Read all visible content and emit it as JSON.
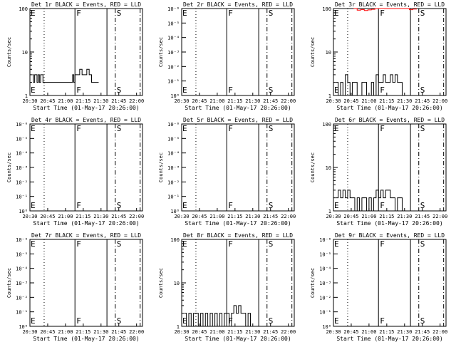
{
  "chart_data": [
    {
      "type": "line",
      "title": "Det 1r BLACK = Events, RED = LLD",
      "xlabel": "Start Time (01-May-17 20:26:00)",
      "ylabel": "Counts/sec",
      "scale": "log",
      "y_tick_labels": [
        "1",
        "10",
        "100"
      ],
      "y_tick_values": [
        1,
        10,
        100
      ],
      "x_tick_labels": [
        "20:30",
        "20:45",
        "21:00",
        "21:15",
        "21:30",
        "21:45",
        "22:00"
      ],
      "xlim": [
        "20:30",
        "22:05"
      ],
      "ylim": [
        1,
        100
      ],
      "markers": [
        {
          "time": "20:42",
          "style": "dotted",
          "label": ""
        },
        {
          "time": "21:08",
          "style": "solid",
          "label": "F"
        },
        {
          "time": "21:35",
          "style": "solid",
          "label": ""
        },
        {
          "time": "21:42",
          "style": "dashdot",
          "label": "S"
        },
        {
          "time": "22:03",
          "style": "dashdot",
          "label": ""
        }
      ],
      "edge_labels": [
        "E",
        "E"
      ],
      "series": [
        {
          "color": "#000000",
          "x": [
            "20:32",
            "20:33",
            "20:34",
            "20:35",
            "20:36",
            "20:37",
            "20:38",
            "20:39",
            "20:40",
            "20:41",
            "20:42",
            "20:43",
            "20:45",
            "20:48",
            "20:52",
            "20:56",
            "21:00",
            "21:04",
            "21:06",
            "21:07",
            "21:08",
            "21:10",
            "21:12",
            "21:14",
            "21:16",
            "21:18",
            "21:20",
            "21:22",
            "21:24",
            "21:26",
            "21:28"
          ],
          "y": [
            3,
            2,
            3,
            3,
            2,
            3,
            2,
            3,
            3,
            2,
            2,
            2,
            2,
            2,
            2,
            2,
            2,
            2,
            3,
            2,
            3,
            3,
            4,
            3,
            3,
            4,
            3,
            2,
            2,
            2,
            2
          ]
        }
      ]
    },
    {
      "type": "line",
      "title": "Det 2r BLACK = Events, RED = LLD",
      "xlabel": "Start Time (01-May-17 20:26:00)",
      "ylabel": "Counts/sec",
      "scale": "log",
      "y_tick_labels": [
        "10⁰",
        "10⁻¹",
        "10⁻²",
        "10⁻³",
        "10⁻⁴",
        "10⁻⁵",
        "10⁻⁶"
      ],
      "x_tick_labels": [
        "20:30",
        "20:45",
        "21:00",
        "21:15",
        "21:30",
        "21:45",
        "22:00"
      ],
      "markers": [
        {
          "time": "20:42",
          "style": "dotted",
          "label": ""
        },
        {
          "time": "21:08",
          "style": "solid",
          "label": "F"
        },
        {
          "time": "21:35",
          "style": "solid",
          "label": ""
        },
        {
          "time": "21:42",
          "style": "dashdot",
          "label": "S"
        },
        {
          "time": "22:03",
          "style": "dashdot",
          "label": ""
        }
      ],
      "edge_labels": [
        "E",
        "E"
      ],
      "series": []
    },
    {
      "type": "line",
      "title": "Det 3r BLACK = Events, RED = LLD",
      "xlabel": "Start Time (01-May-17 20:26:00)",
      "ylabel": "Counts/sec",
      "scale": "log",
      "y_tick_labels": [
        "1",
        "10",
        "100"
      ],
      "y_tick_values": [
        1,
        10,
        100
      ],
      "x_tick_labels": [
        "20:30",
        "20:45",
        "21:00",
        "21:15",
        "21:30",
        "21:45",
        "22:00"
      ],
      "markers": [
        {
          "time": "20:42",
          "style": "dotted",
          "label": ""
        },
        {
          "time": "21:08",
          "style": "solid",
          "label": "F"
        },
        {
          "time": "21:35",
          "style": "solid",
          "label": ""
        },
        {
          "time": "21:42",
          "style": "dashdot",
          "label": "S"
        },
        {
          "time": "22:03",
          "style": "dashdot",
          "label": ""
        }
      ],
      "edge_labels": [
        "E",
        "E"
      ],
      "series": [
        {
          "color": "#000000",
          "x": [
            "20:32",
            "20:34",
            "20:36",
            "20:38",
            "20:40",
            "20:42",
            "20:44",
            "20:46",
            "20:50",
            "20:54",
            "20:58",
            "21:02",
            "21:04",
            "21:06",
            "21:08",
            "21:10",
            "21:12",
            "21:14",
            "21:16",
            "21:18",
            "21:20",
            "21:22",
            "21:24",
            "21:26",
            "21:28"
          ],
          "y": [
            2,
            1,
            2,
            1,
            3,
            2,
            1,
            2,
            1,
            2,
            1,
            2,
            1,
            3,
            2,
            2,
            3,
            2,
            2,
            3,
            2,
            3,
            2,
            2,
            1
          ]
        },
        {
          "color": "#ff0000",
          "x": [
            "20:47",
            "20:50",
            "20:53",
            "20:56",
            "20:59",
            "21:02",
            "21:05",
            "21:31",
            "21:34",
            "21:37",
            "21:40"
          ],
          "y": [
            100,
            92,
            95,
            90,
            93,
            96,
            100,
            100,
            94,
            97,
            100
          ]
        }
      ]
    },
    {
      "type": "line",
      "title": "Det 4r BLACK = Events, RED = LLD",
      "xlabel": "Start Time (01-May-17 20:26:00)",
      "ylabel": "Counts/sec",
      "scale": "log",
      "y_tick_labels": [
        "10⁰",
        "10⁻¹",
        "10⁻²",
        "10⁻³",
        "10⁻⁴",
        "10⁻⁵",
        "10⁻⁶"
      ],
      "x_tick_labels": [
        "20:30",
        "20:45",
        "21:00",
        "21:15",
        "21:30",
        "21:45",
        "22:00"
      ],
      "markers": [
        {
          "time": "20:42",
          "style": "dotted",
          "label": ""
        },
        {
          "time": "21:08",
          "style": "solid",
          "label": "F"
        },
        {
          "time": "21:35",
          "style": "solid",
          "label": ""
        },
        {
          "time": "21:42",
          "style": "dashdot",
          "label": "S"
        },
        {
          "time": "22:03",
          "style": "dashdot",
          "label": ""
        }
      ],
      "edge_labels": [
        "E",
        "E"
      ],
      "series": []
    },
    {
      "type": "line",
      "title": "Det 5r BLACK = Events, RED = LLD",
      "xlabel": "Start Time (01-May-17 20:26:00)",
      "ylabel": "Counts/sec",
      "scale": "log",
      "y_tick_labels": [
        "10⁰",
        "10⁻¹",
        "10⁻²",
        "10⁻³",
        "10⁻⁴",
        "10⁻⁵",
        "10⁻⁶"
      ],
      "x_tick_labels": [
        "20:30",
        "20:45",
        "21:00",
        "21:15",
        "21:30",
        "21:45",
        "22:00"
      ],
      "markers": [
        {
          "time": "20:42",
          "style": "dotted",
          "label": ""
        },
        {
          "time": "21:08",
          "style": "solid",
          "label": "F"
        },
        {
          "time": "21:35",
          "style": "solid",
          "label": ""
        },
        {
          "time": "21:42",
          "style": "dashdot",
          "label": "S"
        },
        {
          "time": "22:03",
          "style": "dashdot",
          "label": ""
        }
      ],
      "edge_labels": [
        "E",
        "E"
      ],
      "series": []
    },
    {
      "type": "line",
      "title": "Det 6r BLACK = Events, RED = LLD",
      "xlabel": "Start Time (01-May-17 20:26:00)",
      "ylabel": "Counts/sec",
      "scale": "log",
      "y_tick_labels": [
        "1",
        "10",
        "100"
      ],
      "y_tick_values": [
        1,
        10,
        100
      ],
      "x_tick_labels": [
        "20:30",
        "20:45",
        "21:00",
        "21:15",
        "21:30",
        "21:45",
        "22:00"
      ],
      "markers": [
        {
          "time": "20:42",
          "style": "dotted",
          "label": ""
        },
        {
          "time": "21:08",
          "style": "solid",
          "label": "F"
        },
        {
          "time": "21:35",
          "style": "solid",
          "label": ""
        },
        {
          "time": "21:42",
          "style": "dashdot",
          "label": "S"
        },
        {
          "time": "22:03",
          "style": "dashdot",
          "label": ""
        }
      ],
      "edge_labels": [
        "E",
        "E"
      ],
      "series": [
        {
          "color": "#000000",
          "x": [
            "20:32",
            "20:34",
            "20:36",
            "20:38",
            "20:40",
            "20:42",
            "20:44",
            "20:46",
            "20:48",
            "20:50",
            "20:52",
            "20:54",
            "20:56",
            "20:58",
            "21:00",
            "21:02",
            "21:04",
            "21:06",
            "21:08",
            "21:10",
            "21:12",
            "21:14",
            "21:16",
            "21:18",
            "21:20",
            "21:22",
            "21:24",
            "21:26",
            "21:28"
          ],
          "y": [
            2,
            3,
            2,
            3,
            2,
            3,
            2,
            2,
            1,
            2,
            1,
            2,
            2,
            1,
            2,
            1,
            2,
            3,
            2,
            3,
            2,
            3,
            3,
            2,
            2,
            1,
            2,
            2,
            1
          ]
        }
      ]
    },
    {
      "type": "line",
      "title": "Det 7r BLACK = Events, RED = LLD",
      "xlabel": "Start Time (01-May-17 20:26:00)",
      "ylabel": "Counts/sec",
      "scale": "log",
      "y_tick_labels": [
        "10⁰",
        "10⁻¹",
        "10⁻²",
        "10⁻³",
        "10⁻⁴",
        "10⁻⁵",
        "10⁻⁶"
      ],
      "x_tick_labels": [
        "20:30",
        "20:45",
        "21:00",
        "21:15",
        "21:30",
        "21:45",
        "22:00"
      ],
      "markers": [
        {
          "time": "20:42",
          "style": "dotted",
          "label": ""
        },
        {
          "time": "21:08",
          "style": "solid",
          "label": "F"
        },
        {
          "time": "21:35",
          "style": "solid",
          "label": ""
        },
        {
          "time": "21:42",
          "style": "dashdot",
          "label": "S"
        },
        {
          "time": "22:03",
          "style": "dashdot",
          "label": ""
        }
      ],
      "edge_labels": [
        "E",
        "E"
      ],
      "series": []
    },
    {
      "type": "line",
      "title": "Det 8r BLACK = Events, RED = LLD",
      "xlabel": "Start Time (01-May-17 20:26:00)",
      "ylabel": "Counts/sec",
      "scale": "log",
      "y_tick_labels": [
        "1",
        "10",
        "100"
      ],
      "y_tick_values": [
        1,
        10,
        100
      ],
      "x_tick_labels": [
        "20:30",
        "20:45",
        "21:00",
        "21:15",
        "21:30",
        "21:45",
        "22:00"
      ],
      "markers": [
        {
          "time": "20:42",
          "style": "dotted",
          "label": ""
        },
        {
          "time": "21:08",
          "style": "solid",
          "label": "F"
        },
        {
          "time": "21:35",
          "style": "solid",
          "label": ""
        },
        {
          "time": "21:42",
          "style": "dashdot",
          "label": "S"
        },
        {
          "time": "22:03",
          "style": "dashdot",
          "label": ""
        }
      ],
      "edge_labels": [
        "E",
        "E"
      ],
      "series": [
        {
          "color": "#000000",
          "x": [
            "20:32",
            "20:34",
            "20:36",
            "20:38",
            "20:40",
            "20:42",
            "20:44",
            "20:46",
            "20:48",
            "20:50",
            "20:52",
            "20:54",
            "20:56",
            "20:58",
            "21:00",
            "21:02",
            "21:04",
            "21:06",
            "21:08",
            "21:10",
            "21:12",
            "21:14",
            "21:16",
            "21:18",
            "21:20",
            "21:22",
            "21:24",
            "21:26",
            "21:28"
          ],
          "y": [
            2,
            1,
            2,
            1,
            2,
            2,
            1,
            2,
            1,
            2,
            1,
            2,
            1,
            2,
            1,
            2,
            1,
            2,
            2,
            1,
            2,
            3,
            2,
            3,
            2,
            2,
            1,
            2,
            1
          ]
        }
      ]
    },
    {
      "type": "line",
      "title": "Det 9r BLACK = Events, RED = LLD",
      "xlabel": "Start Time (01-May-17 20:26:00)",
      "ylabel": "Counts/sec",
      "scale": "log",
      "y_tick_labels": [
        "10⁰",
        "10⁻¹",
        "10⁻²",
        "10⁻³",
        "10⁻⁴",
        "10⁻⁵",
        "10⁻⁶"
      ],
      "x_tick_labels": [
        "20:30",
        "20:45",
        "21:00",
        "21:15",
        "21:30",
        "21:45",
        "22:00"
      ],
      "markers": [
        {
          "time": "20:42",
          "style": "dotted",
          "label": ""
        },
        {
          "time": "21:08",
          "style": "solid",
          "label": "F"
        },
        {
          "time": "21:35",
          "style": "solid",
          "label": ""
        },
        {
          "time": "21:42",
          "style": "dashdot",
          "label": "S"
        },
        {
          "time": "22:03",
          "style": "dashdot",
          "label": ""
        }
      ],
      "edge_labels": [
        "E",
        "E"
      ],
      "series": []
    }
  ]
}
